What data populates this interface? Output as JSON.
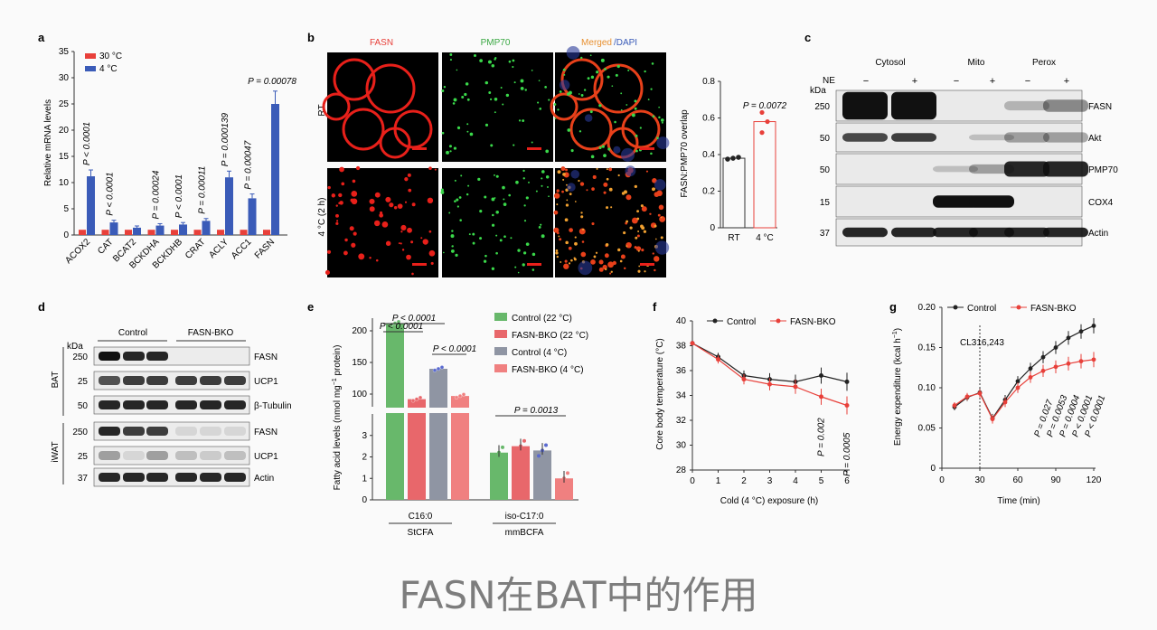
{
  "caption": "FASN在BAT中的作用",
  "colors": {
    "red": "#e8403a",
    "blue": "#3a5bb8",
    "gray": "#8f95a3",
    "green": "#68b86b",
    "salmon": "#e8676b",
    "scarlet": "#f08080"
  },
  "panel_a": {
    "label": "a",
    "legend": [
      "30 °C",
      "4 °C"
    ],
    "ylabel": "Relative mRNA levels",
    "yticks": [
      "0",
      "5",
      "10",
      "15",
      "20",
      "25",
      "30",
      "35"
    ],
    "categories": [
      "ACOX2",
      "CAT",
      "BCAT2",
      "BCKDHA",
      "BCKDHB",
      "CRAT",
      "ACLY",
      "ACC1",
      "FASN"
    ],
    "pvalues": [
      "P < 0.0001",
      "P < 0.0001",
      "",
      "P = 0.00024",
      "P < 0.0001",
      "P = 0.00011",
      "P = 0.000139",
      "P = 0.00047",
      "P = 0.00078"
    ]
  },
  "panel_b": {
    "label": "b",
    "col_fasn": "FASN",
    "col_pmp": "PMP70",
    "col_merged": "Merged",
    "col_dapi": "/DAPI",
    "row_rt": "RT",
    "row_cold": "4 °C (2 h)",
    "ylabel": "FASN:PMP70 overlap",
    "yticks": [
      "0",
      "0.2",
      "0.4",
      "0.6",
      "0.8"
    ],
    "xticks": [
      "RT",
      "4 °C"
    ],
    "pvalue": "P = 0.0072"
  },
  "panel_c": {
    "label": "c",
    "groups": [
      "Cytosol",
      "Mito",
      "Perox"
    ],
    "ne": "NE",
    "minus": "−",
    "plus": "+",
    "kda": "kDa",
    "bands": [
      {
        "mw": "250",
        "name": "FASN"
      },
      {
        "mw": "50",
        "name": "Akt"
      },
      {
        "mw": "50",
        "name": "PMP70"
      },
      {
        "mw": "15",
        "name": "COX4"
      },
      {
        "mw": "37",
        "name": "Actin"
      }
    ]
  },
  "panel_d": {
    "label": "d",
    "groups": [
      "Control",
      "FASN-BKO"
    ],
    "kda": "kDa",
    "bat": "BAT",
    "iwat": "iWAT",
    "bands": [
      {
        "mw": "250",
        "name": "FASN"
      },
      {
        "mw": "25",
        "name": "UCP1"
      },
      {
        "mw": "50",
        "name": "β-Tubulin"
      },
      {
        "mw": "250",
        "name": "FASN"
      },
      {
        "mw": "25",
        "name": "UCP1"
      },
      {
        "mw": "37",
        "name": "Actin"
      }
    ]
  },
  "panel_e": {
    "label": "e",
    "ylabel": "Fatty acid levels (nmol mg",
    "ylabel_sup": "−1",
    "ylabel_end": " protein)",
    "yticks_top": [
      "100",
      "150",
      "200"
    ],
    "yticks_bottom": [
      "0",
      "1",
      "2",
      "3"
    ],
    "xticks": [
      "C16:0",
      "iso-C17:0"
    ],
    "xsub": [
      "StCFA",
      "mmBCFA"
    ],
    "legend": [
      "Control (22 °C)",
      "FASN-BKO (22 °C)",
      "Control (4 °C)",
      "FASN-BKO (4 °C)"
    ],
    "pvalues": [
      "P < 0.0001",
      "P < 0.0001",
      "P < 0.0001",
      "P = 0.0013"
    ]
  },
  "panel_f": {
    "label": "f",
    "legend": [
      "Control",
      "FASN-BKO"
    ],
    "ylabel": "Core body temperature (°C)",
    "xlabel": "Cold (4 °C) exposure (h)",
    "yticks": [
      "28",
      "30",
      "32",
      "34",
      "36",
      "38",
      "40"
    ],
    "xticks": [
      "0",
      "1",
      "2",
      "3",
      "4",
      "5",
      "6"
    ],
    "pvalues": [
      "P = 0.002",
      "P = 0.0005"
    ]
  },
  "panel_g": {
    "label": "g",
    "legend": [
      "Control",
      "FASN-BKO"
    ],
    "ylabel": "Energy expenditure (kcal h",
    "ylabel_sup": "−1",
    "ylabel_end": ")",
    "xlabel": "Time (min)",
    "yticks": [
      "0",
      "0.05",
      "0.10",
      "0.15",
      "0.20"
    ],
    "xticks": [
      "0",
      "30",
      "60",
      "90",
      "120"
    ],
    "annotation": "CL316,243",
    "pvalues": [
      "P = 0.027",
      "P = 0.0053",
      "P = 0.0004",
      "P < 0.0001",
      "P < 0.0001"
    ]
  },
  "chart_data": [
    {
      "type": "bar",
      "title": "",
      "ylabel": "Relative mRNA levels",
      "ylim": [
        0,
        35
      ],
      "categories": [
        "ACOX2",
        "CAT",
        "BCAT2",
        "BCKDHA",
        "BCKDHB",
        "CRAT",
        "ACLY",
        "ACC1",
        "FASN"
      ],
      "series": [
        {
          "name": "30 °C",
          "values": [
            1,
            1,
            1,
            1,
            1,
            1,
            1,
            1,
            1
          ]
        },
        {
          "name": "4 °C",
          "values": [
            11.2,
            2.4,
            1.4,
            1.8,
            2.0,
            2.7,
            11.0,
            7.0,
            25.0
          ]
        }
      ]
    },
    {
      "type": "bar",
      "ylabel": "FASN:PMP70 overlap",
      "ylim": [
        0,
        0.8
      ],
      "categories": [
        "RT",
        "4 °C"
      ],
      "values": [
        0.38,
        0.58
      ]
    },
    {
      "type": "bar",
      "ylabel": "Fatty acid levels",
      "categories": [
        "C16:0",
        "iso-C17:0"
      ],
      "series": [
        {
          "name": "Control (22 °C)",
          "values": [
            212,
            2.2
          ]
        },
        {
          "name": "FASN-BKO (22 °C)",
          "values": [
            92,
            2.5
          ]
        },
        {
          "name": "Control (4 °C)",
          "values": [
            140,
            2.3
          ]
        },
        {
          "name": "FASN-BKO (4 °C)",
          "values": [
            97,
            1.0
          ]
        }
      ]
    },
    {
      "type": "line",
      "ylabel": "Core body temperature (°C)",
      "xlabel": "Cold (4 °C) exposure (h)",
      "ylim": [
        28,
        40
      ],
      "x": [
        0,
        1,
        2,
        3,
        4,
        5,
        6
      ],
      "series": [
        {
          "name": "Control",
          "values": [
            38.2,
            37.1,
            35.6,
            35.3,
            35.1,
            35.6,
            35.1
          ]
        },
        {
          "name": "FASN-BKO",
          "values": [
            38.2,
            36.9,
            35.3,
            34.9,
            34.7,
            33.9,
            33.2
          ]
        }
      ]
    },
    {
      "type": "line",
      "ylabel": "Energy expenditure",
      "xlabel": "Time (min)",
      "ylim": [
        0,
        0.2
      ],
      "x": [
        10,
        20,
        30,
        40,
        50,
        60,
        70,
        80,
        90,
        100,
        110,
        120
      ],
      "series": [
        {
          "name": "Control",
          "values": [
            0.076,
            0.088,
            0.094,
            0.062,
            0.085,
            0.108,
            0.124,
            0.138,
            0.15,
            0.162,
            0.17,
            0.177
          ]
        },
        {
          "name": "FASN-BKO",
          "values": [
            0.078,
            0.089,
            0.093,
            0.061,
            0.082,
            0.1,
            0.113,
            0.121,
            0.126,
            0.13,
            0.133,
            0.135
          ]
        }
      ]
    }
  ]
}
